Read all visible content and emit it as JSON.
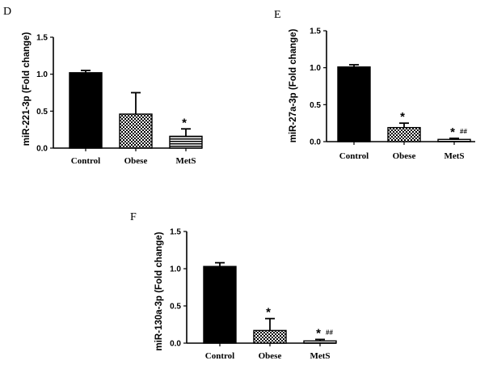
{
  "chart_data": [
    {
      "panel": "D",
      "type": "bar",
      "ylabel": "miR-221-3p (Fold change)",
      "ylim": [
        0,
        1.5
      ],
      "yticks": [
        "0.0",
        "0.5",
        "1.0",
        "1.5"
      ],
      "ytick_values": [
        0,
        0.5,
        1.0,
        1.5
      ],
      "categories": [
        "Control",
        "Obese",
        "MetS"
      ],
      "values": [
        1.02,
        0.46,
        0.16
      ],
      "errors": [
        0.03,
        0.29,
        0.1
      ],
      "patterns": [
        "solid",
        "check",
        "hlines"
      ],
      "annotations": [
        {
          "category": "MetS",
          "star": "*",
          "hash": ""
        }
      ]
    },
    {
      "panel": "E",
      "type": "bar",
      "ylabel": "miR-27a-3p (Fold change)",
      "ylim": [
        0,
        1.5
      ],
      "yticks": [
        "0.0",
        "0.5",
        "1.0",
        "1.5"
      ],
      "ytick_values": [
        0,
        0.5,
        1.0,
        1.5
      ],
      "categories": [
        "Control",
        "Obese",
        "MetS"
      ],
      "values": [
        1.01,
        0.19,
        0.03
      ],
      "errors": [
        0.03,
        0.06,
        0.015
      ],
      "patterns": [
        "solid",
        "check",
        "hlines"
      ],
      "annotations": [
        {
          "category": "Obese",
          "star": "*",
          "hash": ""
        },
        {
          "category": "MetS",
          "star": "*",
          "hash": "##"
        }
      ]
    },
    {
      "panel": "F",
      "type": "bar",
      "ylabel": "miR-130a-3p (Fold change)",
      "ylim": [
        0,
        1.5
      ],
      "yticks": [
        "0.0",
        "0.5",
        "1.0",
        "1.5"
      ],
      "ytick_values": [
        0,
        0.5,
        1.0,
        1.5
      ],
      "categories": [
        "Control",
        "Obese",
        "MetS"
      ],
      "values": [
        1.03,
        0.17,
        0.03
      ],
      "errors": [
        0.05,
        0.16,
        0.02
      ],
      "patterns": [
        "solid",
        "check",
        "hlines"
      ],
      "annotations": [
        {
          "category": "Obese",
          "star": "*",
          "hash": ""
        },
        {
          "category": "MetS",
          "star": "*",
          "hash": "##"
        }
      ]
    }
  ]
}
